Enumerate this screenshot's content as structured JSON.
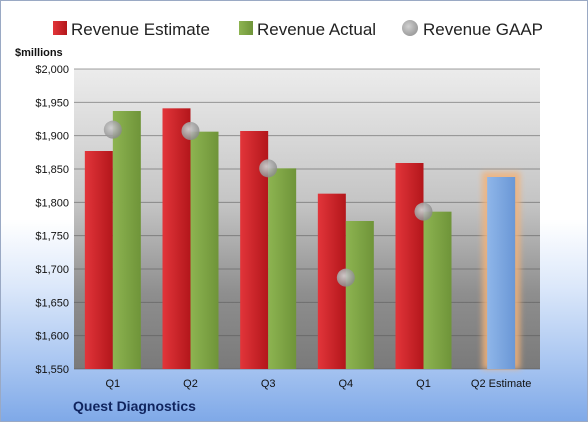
{
  "company": "Quest Diagnostics",
  "colors": {
    "estimate": "#c8191e",
    "actual": "#7ba142",
    "gaap": "#a8a8a8",
    "projected": "#7aa5e0",
    "projected_glow": "#f2b27a"
  },
  "chart_data": {
    "type": "bar",
    "ylabel": "$millions",
    "ylim": [
      1550,
      2000
    ],
    "yticks": [
      1550,
      1600,
      1650,
      1700,
      1750,
      1800,
      1850,
      1900,
      1950,
      2000
    ],
    "ytick_labels": [
      "$1,550",
      "$1,600",
      "$1,650",
      "$1,700",
      "$1,750",
      "$1,800",
      "$1,850",
      "$1,900",
      "$1,950",
      "$2,000"
    ],
    "categories": [
      "Q1",
      "Q2",
      "Q3",
      "Q4",
      "Q1",
      "Q2 Estimate"
    ],
    "legend_position": "top",
    "grid": true,
    "series": [
      {
        "name": "Revenue Estimate",
        "kind": "bar",
        "values": [
          1877,
          1941,
          1907,
          1813,
          1859,
          1838
        ]
      },
      {
        "name": "Revenue Actual",
        "kind": "bar",
        "values": [
          1937,
          1906,
          1851,
          1772,
          1786,
          null
        ]
      },
      {
        "name": "Revenue GAAP",
        "kind": "marker",
        "values": [
          1909,
          1907,
          1851,
          1687,
          1786,
          null
        ]
      }
    ]
  }
}
